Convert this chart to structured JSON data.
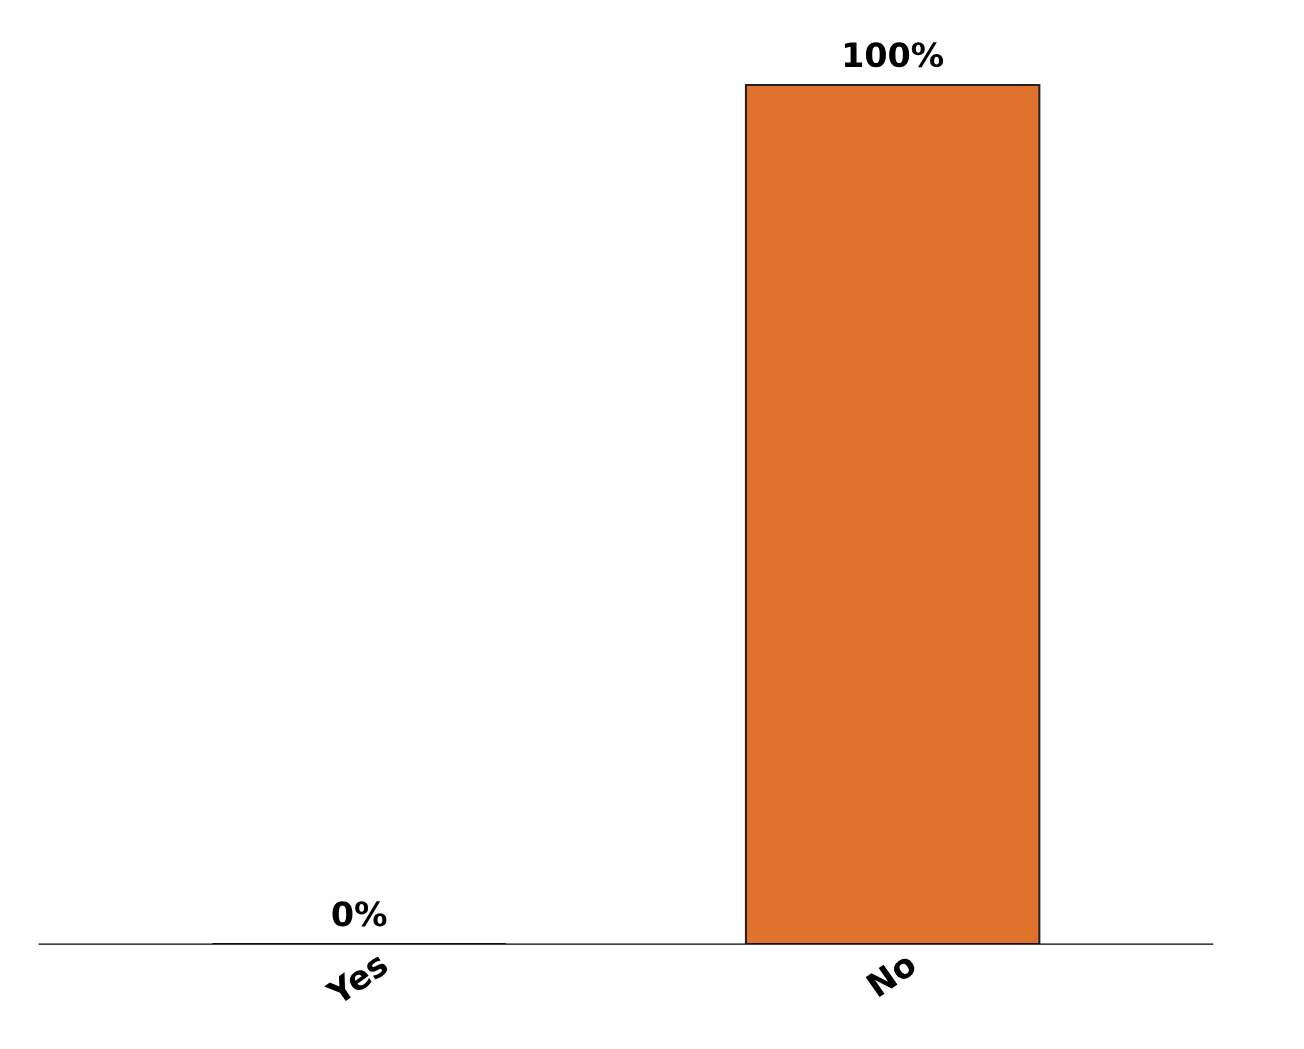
{
  "chart_data": {
    "type": "bar",
    "categories": [
      "Yes",
      "No"
    ],
    "values": [
      0,
      100
    ],
    "colors": [
      "#5b9bd5",
      "#e0722e"
    ],
    "value_labels": [
      "0%",
      "100%"
    ],
    "grid": false,
    "legend": false
  }
}
